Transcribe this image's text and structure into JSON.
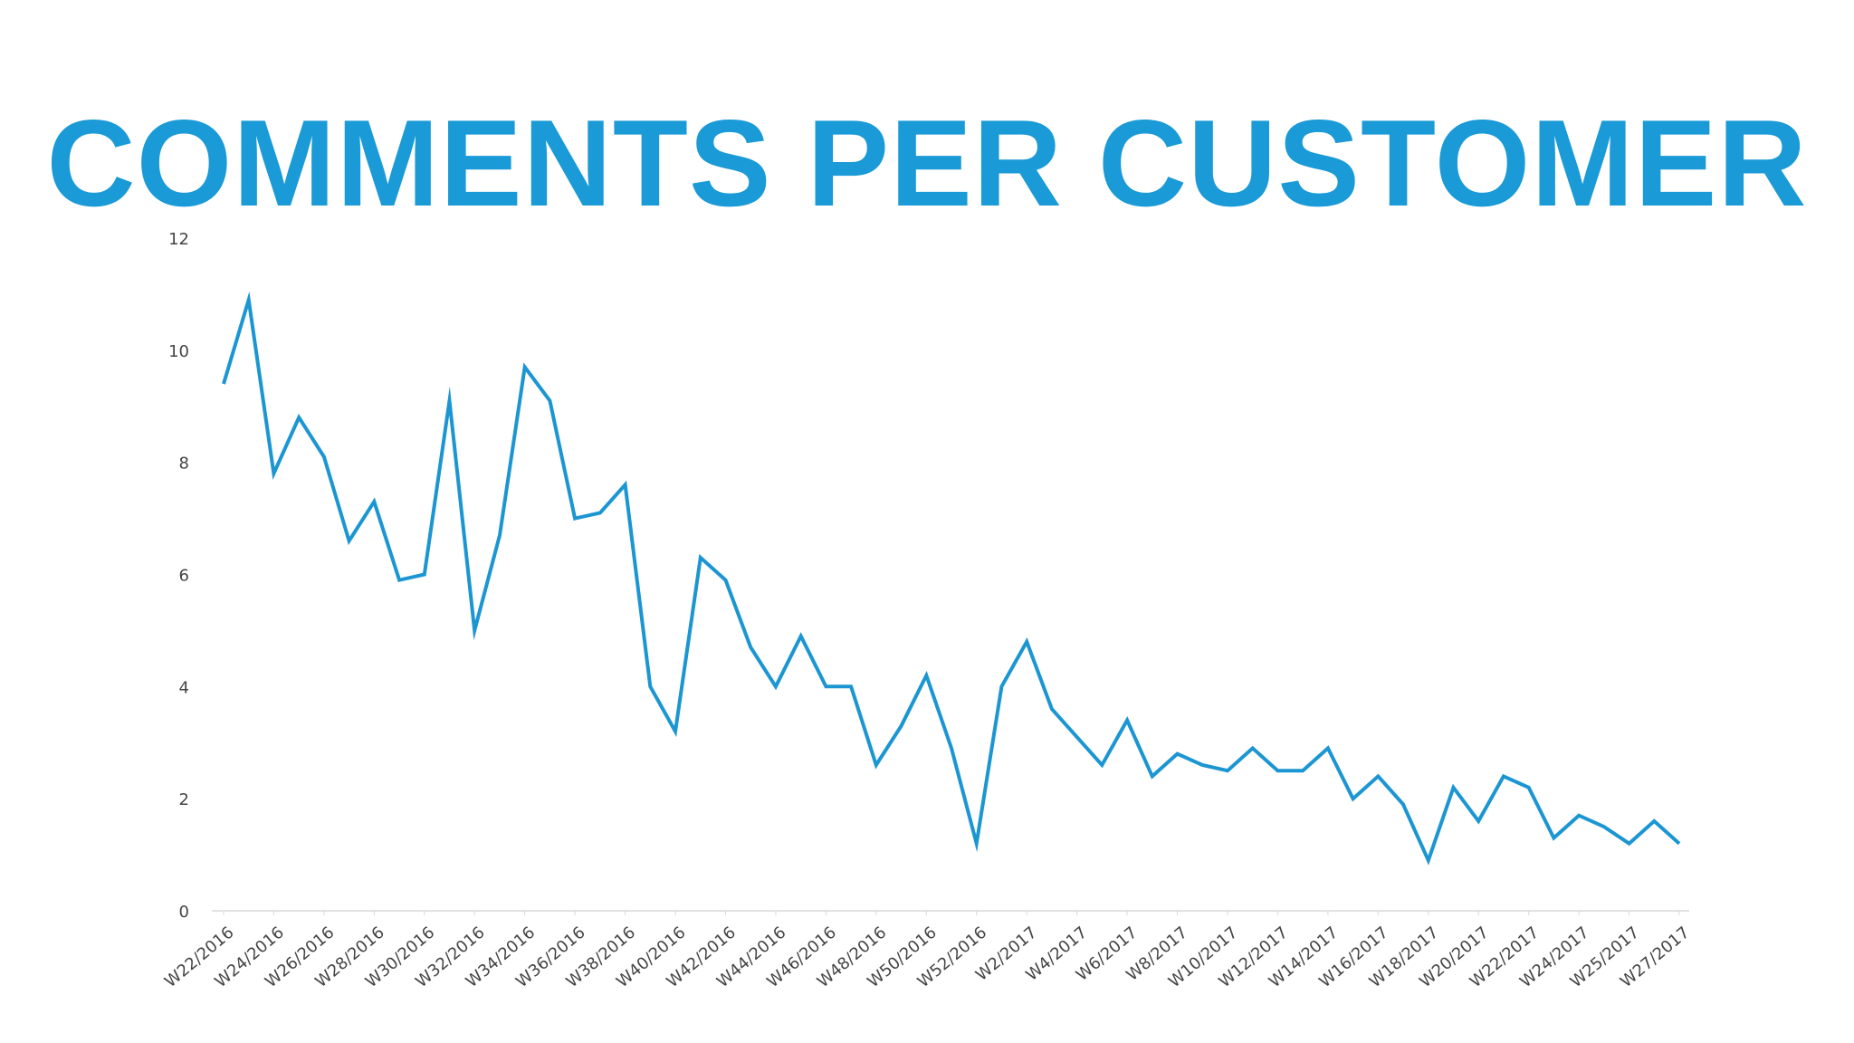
{
  "colors": {
    "title": "#1a9ad6",
    "line": "#1b96d2",
    "axis": "#d9d9d9",
    "tick_text": "#444444"
  },
  "chart_data": {
    "type": "line",
    "title": "COMMENTS PER CUSTOMER",
    "xlabel": "",
    "ylabel": "",
    "ylim": [
      0,
      12
    ],
    "y_ticks": [
      0,
      2,
      4,
      6,
      8,
      10,
      12
    ],
    "grid": false,
    "x_tick_labels": [
      "W22/2016",
      "W24/2016",
      "W26/2016",
      "W28/2016",
      "W30/2016",
      "W32/2016",
      "W34/2016",
      "W36/2016",
      "W38/2016",
      "W40/2016",
      "W42/2016",
      "W44/2016",
      "W46/2016",
      "W48/2016",
      "W50/2016",
      "W52/2016",
      "W2/2017",
      "W4/2017",
      "W6/2017",
      "W8/2017",
      "W10/2017",
      "W12/2017",
      "W14/2017",
      "W16/2017",
      "W18/2017",
      "W20/2017",
      "W22/2017",
      "W24/2017",
      "W25/2017",
      "W27/2017"
    ],
    "series": [
      {
        "values": [
          9.4,
          10.9,
          7.8,
          8.8,
          8.1,
          6.6,
          7.3,
          5.9,
          6.0,
          9.1,
          5.0,
          6.7,
          9.7,
          9.1,
          7.0,
          7.1,
          7.6,
          4.0,
          3.2,
          6.3,
          5.9,
          4.7,
          4.0,
          4.9,
          4.0,
          4.0,
          2.6,
          3.3,
          4.2,
          2.9,
          1.2,
          4.0,
          4.8,
          3.6,
          3.1,
          2.6,
          3.4,
          2.4,
          2.8,
          2.6,
          2.5,
          2.9,
          2.5,
          2.5,
          2.9,
          2.0,
          2.4,
          1.9,
          0.9,
          2.2,
          1.6,
          2.4,
          2.2,
          1.3,
          1.7,
          1.5,
          1.2,
          1.6,
          1.2
        ]
      }
    ]
  }
}
